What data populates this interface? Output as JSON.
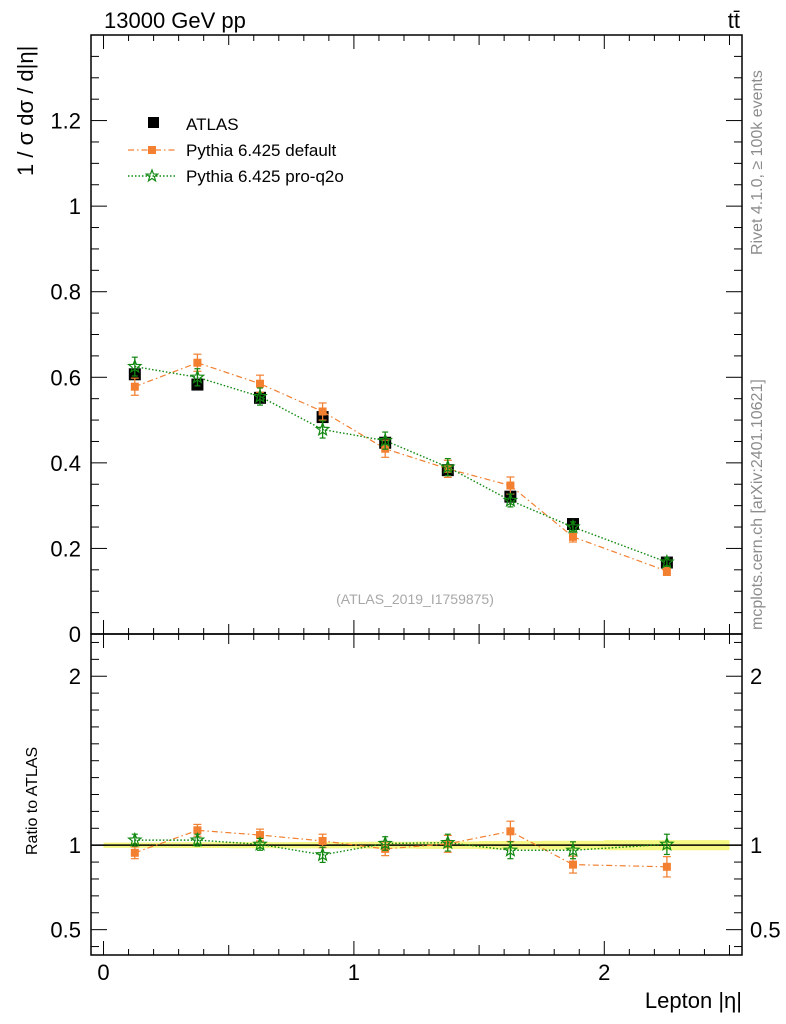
{
  "header": {
    "energy_label": "13000 GeV pp",
    "process_label": "tt̄"
  },
  "side_labels": {
    "rivet": "Rivet 4.1.0, ≥ 100k events",
    "mcplots": "mcplots.cern.ch [arXiv:2401.10621]"
  },
  "watermark": "(ATLAS_2019_I1759875)",
  "colors": {
    "data": "#000000",
    "pythia_default": "#f28030",
    "pythia_proq2o": "#118811",
    "ratio_band": "#f2f55a"
  },
  "chart_data": [
    {
      "type": "scatter",
      "panel": "main",
      "ylabel": "1 / σ  dσ / d|η|",
      "xlim": [
        -0.05,
        2.55
      ],
      "ylim": [
        0,
        1.4
      ],
      "yticks": [
        0,
        0.2,
        0.4,
        0.6,
        0.8,
        1,
        1.2
      ],
      "ytick_labels": [
        "0",
        "0.2",
        "0.4",
        "0.6",
        "0.8",
        "1",
        "1.2"
      ],
      "legend": [
        "ATLAS",
        "Pythia 6.425 default",
        "Pythia 6.425 pro-q2o"
      ],
      "legend_position": "top-left",
      "x": [
        0.125,
        0.375,
        0.625,
        0.875,
        1.125,
        1.375,
        1.625,
        1.875,
        2.25
      ],
      "xerr": [
        0.125,
        0.125,
        0.125,
        0.125,
        0.125,
        0.125,
        0.125,
        0.125,
        0.25
      ],
      "series": [
        {
          "name": "ATLAS",
          "marker": "square",
          "values": [
            0.607,
            0.583,
            0.552,
            0.507,
            0.447,
            0.383,
            0.321,
            0.257,
            0.167
          ],
          "errors": [
            0.01,
            0.01,
            0.01,
            0.01,
            0.01,
            0.01,
            0.01,
            0.008,
            0.006
          ]
        },
        {
          "name": "Pythia 6.425 default",
          "marker": "square-small",
          "dash": "dashdot",
          "values": [
            0.578,
            0.634,
            0.585,
            0.52,
            0.433,
            0.386,
            0.347,
            0.227,
            0.147
          ],
          "errors": [
            0.02,
            0.02,
            0.02,
            0.02,
            0.02,
            0.02,
            0.02,
            0.012,
            0.01
          ]
        },
        {
          "name": "Pythia 6.425 pro-q2o",
          "marker": "star",
          "dash": "dotted",
          "values": [
            0.625,
            0.6,
            0.555,
            0.478,
            0.452,
            0.39,
            0.312,
            0.25,
            0.168
          ],
          "errors": [
            0.022,
            0.02,
            0.02,
            0.02,
            0.02,
            0.02,
            0.015,
            0.012,
            0.01
          ]
        }
      ]
    },
    {
      "type": "scatter",
      "panel": "ratio",
      "xlabel": "Lepton |η|",
      "ylabel": "Ratio to ATLAS",
      "xlim": [
        -0.05,
        2.55
      ],
      "ylim": [
        0.35,
        2.25
      ],
      "yticks": [
        0.5,
        1,
        2
      ],
      "ytick_labels": [
        "0.5",
        "1",
        "2"
      ],
      "xticks": [
        0,
        1,
        2
      ],
      "xtick_labels": [
        "0",
        "1",
        "2"
      ],
      "reference": 1,
      "series": [
        {
          "name": "Pythia 6.425 default",
          "values": [
            0.955,
            1.088,
            1.06,
            1.025,
            0.978,
            1.008,
            1.082,
            0.885,
            0.872
          ],
          "errors": [
            0.035,
            0.035,
            0.035,
            0.04,
            0.04,
            0.05,
            0.06,
            0.05,
            0.06
          ]
        },
        {
          "name": "Pythia 6.425 pro-q2o",
          "values": [
            1.03,
            1.03,
            1.005,
            0.943,
            1.01,
            1.015,
            0.97,
            0.97,
            1.005
          ],
          "errors": [
            0.035,
            0.035,
            0.035,
            0.045,
            0.04,
            0.05,
            0.05,
            0.05,
            0.06
          ]
        }
      ],
      "band_halfwidth": [
        0.016,
        0.017,
        0.018,
        0.019,
        0.02,
        0.022,
        0.025,
        0.026,
        0.03
      ]
    }
  ]
}
